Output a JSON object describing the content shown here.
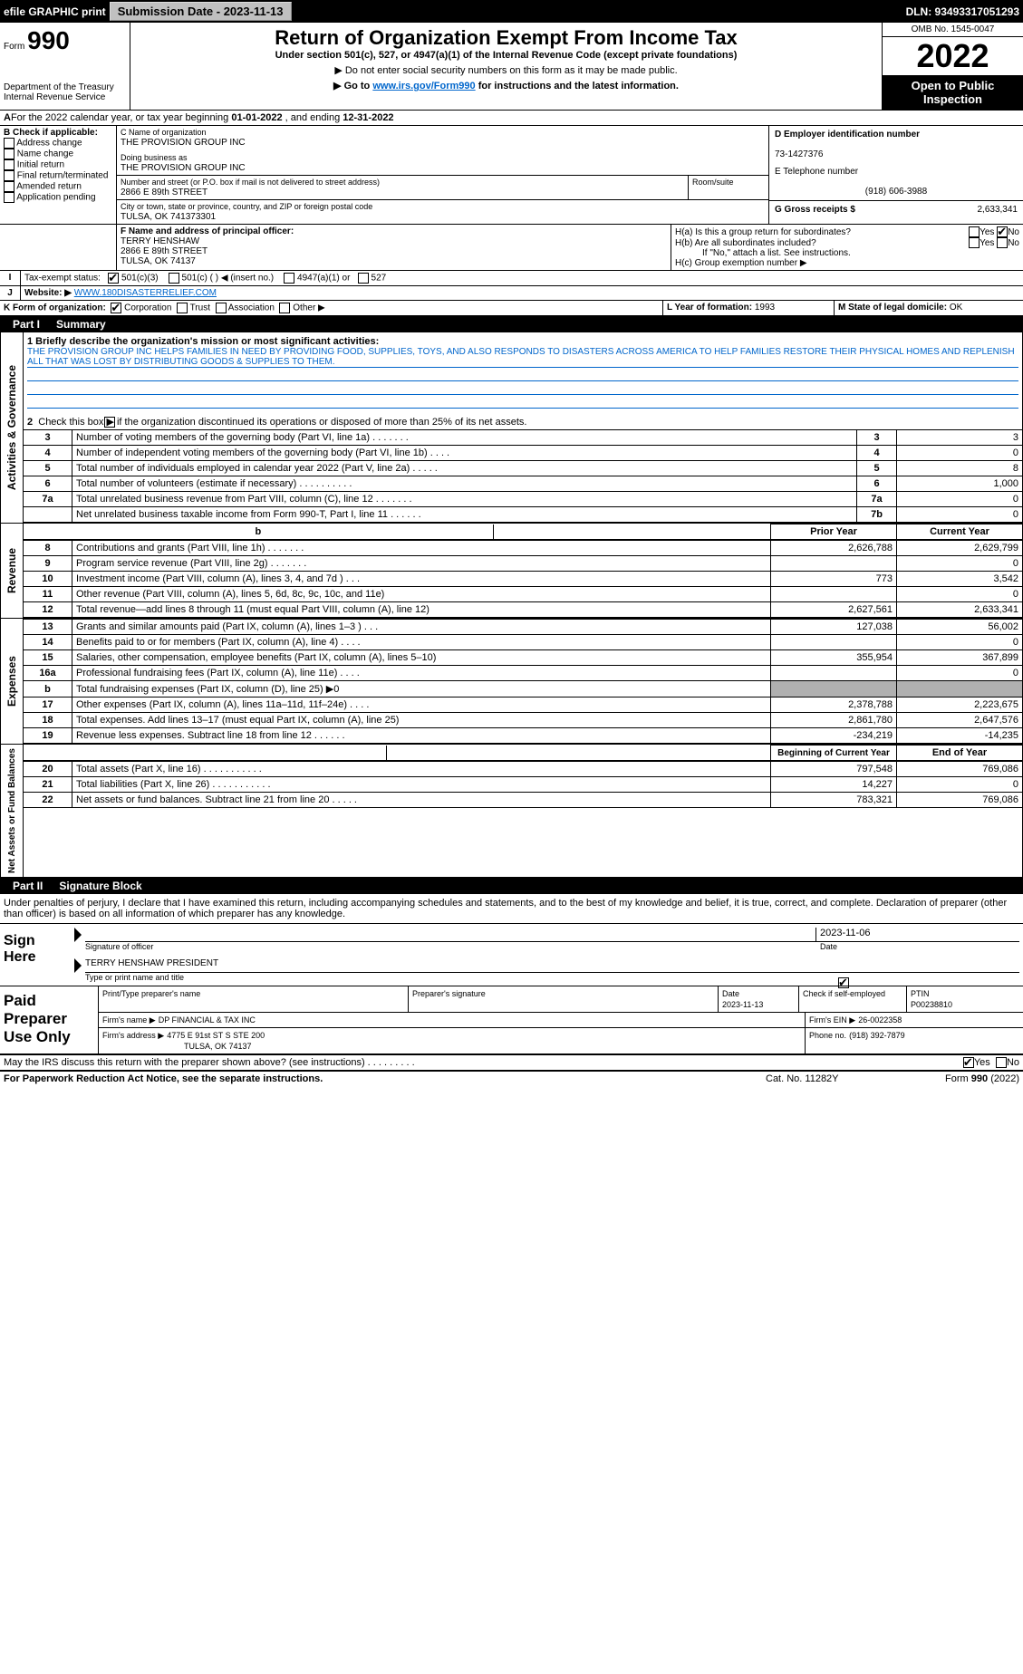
{
  "topbar": {
    "efile": "efile GRAPHIC print",
    "submission_btn": "Submission Date - 2023-11-13",
    "dln": "DLN: 93493317051293"
  },
  "header": {
    "form_word": "Form",
    "form_num": "990",
    "title": "Return of Organization Exempt From Income Tax",
    "subtitle": "Under section 501(c), 527, or 4947(a)(1) of the Internal Revenue Code (except private foundations)",
    "warn": "▶ Do not enter social security numbers on this form as it may be made public.",
    "goto_pre": "▶ Go to ",
    "goto_link": "www.irs.gov/Form990",
    "goto_post": " for instructions and the latest information.",
    "dept": "Department of the Treasury",
    "irs": "Internal Revenue Service",
    "omb": "OMB No. 1545-0047",
    "year": "2022",
    "open": "Open to Public Inspection"
  },
  "line_a": {
    "text_pre": "For the 2022 calendar year, or tax year beginning ",
    "begin": "01-01-2022",
    "mid": " , and ending ",
    "end": "12-31-2022"
  },
  "box_b": {
    "label": "B Check if applicable:",
    "items": [
      "Address change",
      "Name change",
      "Initial return",
      "Final return/terminated",
      "Amended return",
      "Application pending"
    ]
  },
  "box_c": {
    "c_label": "C Name of organization",
    "org": "THE PROVISION GROUP INC",
    "dba_label": "Doing business as",
    "dba": "THE PROVISION GROUP INC",
    "street_label": "Number and street (or P.O. box if mail is not delivered to street address)",
    "street": "2866 E 89th STREET",
    "room_label": "Room/suite",
    "city_label": "City or town, state or province, country, and ZIP or foreign postal code",
    "city": "TULSA, OK  741373301"
  },
  "box_d": {
    "label": "D Employer identification number",
    "val": "73-1427376"
  },
  "box_e": {
    "label": "E Telephone number",
    "val": "(918) 606-3988"
  },
  "box_g": {
    "label": "G Gross receipts $",
    "val": "2,633,341"
  },
  "box_f": {
    "label": "F Name and address of principal officer:",
    "name": "TERRY HENSHAW",
    "street": "2866 E 89th STREET",
    "city": "TULSA, OK  74137"
  },
  "box_h": {
    "a": "H(a)  Is this a group return for subordinates?",
    "b": "H(b)  Are all subordinates included?",
    "b2": "If \"No,\" attach a list. See instructions.",
    "c": "H(c)  Group exemption number ▶",
    "yes": "Yes",
    "no": "No"
  },
  "box_i": {
    "label": "Tax-exempt status:",
    "opts": [
      "501(c)(3)",
      "501(c) (   ) ◀ (insert no.)",
      "4947(a)(1) or",
      "527"
    ]
  },
  "box_j": {
    "label": "Website: ▶",
    "val": "WWW.180DISASTERRELIEF.COM"
  },
  "box_k": {
    "label": "K Form of organization:",
    "opts": [
      "Corporation",
      "Trust",
      "Association",
      "Other ▶"
    ]
  },
  "box_l": {
    "label": "L Year of formation:",
    "val": "1993"
  },
  "box_m": {
    "label": "M State of legal domicile:",
    "val": "OK"
  },
  "part1": {
    "hdr": "Part I",
    "title": "Summary"
  },
  "mission": {
    "label": "1  Briefly describe the organization's mission or most significant activities:",
    "text": "THE PROVISION GROUP INC HELPS FAMILIES IN NEED BY PROVIDING FOOD, SUPPLIES, TOYS, AND ALSO RESPONDS TO DISASTERS ACROSS AMERICA TO HELP FAMILIES RESTORE THEIR PHYSICAL HOMES AND REPLENISH ALL THAT WAS LOST BY DISTRIBUTING GOODS & SUPPLIES TO THEM."
  },
  "gov": {
    "section": "Activities & Governance",
    "line2": "Check this box ▶      if the organization discontinued its operations or disposed of more than 25% of its net assets.",
    "rows": [
      {
        "n": "3",
        "t": "Number of voting members of the governing body (Part VI, line 1a)  .    .    .    .    .    .    .",
        "b": "3",
        "v": "3"
      },
      {
        "n": "4",
        "t": "Number of independent voting members of the governing body (Part VI, line 1b)   .    .    .    .",
        "b": "4",
        "v": "0"
      },
      {
        "n": "5",
        "t": "Total number of individuals employed in calendar year 2022 (Part V, line 2a)   .    .    .    .    .",
        "b": "5",
        "v": "8"
      },
      {
        "n": "6",
        "t": "Total number of volunteers (estimate if necessary)    .    .    .    .    .    .    .    .    .    .",
        "b": "6",
        "v": "1,000"
      },
      {
        "n": "7a",
        "t": "Total unrelated business revenue from Part VIII, column (C), line 12   .    .    .    .    .    .    .",
        "b": "7a",
        "v": "0"
      },
      {
        "n": "",
        "t": "Net unrelated business taxable income from Form 990-T, Part I, line 11   .    .    .    .    .    .",
        "b": "7b",
        "v": "0"
      }
    ]
  },
  "rev": {
    "section": "Revenue",
    "hdr_prior": "Prior Year",
    "hdr_curr": "Current Year",
    "rows": [
      {
        "n": "8",
        "t": "Contributions and grants (Part VIII, line 1h)    .    .    .    .    .    .    .",
        "p": "2,626,788",
        "c": "2,629,799"
      },
      {
        "n": "9",
        "t": "Program service revenue (Part VIII, line 2g)    .    .    .    .    .    .    .",
        "p": "",
        "c": "0"
      },
      {
        "n": "10",
        "t": "Investment income (Part VIII, column (A), lines 3, 4, and 7d )    .    .    .",
        "p": "773",
        "c": "3,542"
      },
      {
        "n": "11",
        "t": "Other revenue (Part VIII, column (A), lines 5, 6d, 8c, 9c, 10c, and 11e)",
        "p": "",
        "c": "0"
      },
      {
        "n": "12",
        "t": "Total revenue—add lines 8 through 11 (must equal Part VIII, column (A), line 12)",
        "p": "2,627,561",
        "c": "2,633,341"
      }
    ]
  },
  "exp": {
    "section": "Expenses",
    "rows": [
      {
        "n": "13",
        "t": "Grants and similar amounts paid (Part IX, column (A), lines 1–3 )   .    .    .",
        "p": "127,038",
        "c": "56,002"
      },
      {
        "n": "14",
        "t": "Benefits paid to or for members (Part IX, column (A), line 4)    .    .    .    .",
        "p": "",
        "c": "0"
      },
      {
        "n": "15",
        "t": "Salaries, other compensation, employee benefits (Part IX, column (A), lines 5–10)",
        "p": "355,954",
        "c": "367,899"
      },
      {
        "n": "16a",
        "t": "Professional fundraising fees (Part IX, column (A), line 11e)    .    .    .    .",
        "p": "",
        "c": "0"
      },
      {
        "n": "b",
        "t": "Total fundraising expenses (Part IX, column (D), line 25) ▶0",
        "p": "GRAY",
        "c": "GRAY"
      },
      {
        "n": "17",
        "t": "Other expenses (Part IX, column (A), lines 11a–11d, 11f–24e)    .    .    .    .",
        "p": "2,378,788",
        "c": "2,223,675"
      },
      {
        "n": "18",
        "t": "Total expenses. Add lines 13–17 (must equal Part IX, column (A), line 25)",
        "p": "2,861,780",
        "c": "2,647,576"
      },
      {
        "n": "19",
        "t": "Revenue less expenses. Subtract line 18 from line 12   .    .    .    .    .    .",
        "p": "-234,219",
        "c": "-14,235"
      }
    ]
  },
  "net": {
    "section": "Net Assets or Fund Balances",
    "hdr_begin": "Beginning of Current Year",
    "hdr_end": "End of Year",
    "rows": [
      {
        "n": "20",
        "t": "Total assets (Part X, line 16)   .    .    .    .    .    .    .    .    .    .    .",
        "p": "797,548",
        "c": "769,086"
      },
      {
        "n": "21",
        "t": "Total liabilities (Part X, line 26)   .    .    .    .    .    .    .    .    .    .    .",
        "p": "14,227",
        "c": "0"
      },
      {
        "n": "22",
        "t": "Net assets or fund balances. Subtract line 21 from line 20    .    .    .    .    .",
        "p": "783,321",
        "c": "769,086"
      }
    ]
  },
  "part2": {
    "hdr": "Part II",
    "title": "Signature Block"
  },
  "penalty": "Under penalties of perjury, I declare that I have examined this return, including accompanying schedules and statements, and to the best of my knowledge and belief, it is true, correct, and complete. Declaration of preparer (other than officer) is based on all information of which preparer has any knowledge.",
  "sign": {
    "here": "Sign Here",
    "sig_label": "Signature of officer",
    "date_label": "Date",
    "date_val": "2023-11-06",
    "name": "TERRY HENSHAW  PRESIDENT",
    "name_label": "Type or print name and title"
  },
  "paid": {
    "title": "Paid Preparer Use Only",
    "h1": "Print/Type preparer's name",
    "h2": "Preparer's signature",
    "h3": "Date",
    "h3v": "2023-11-13",
    "h4": "Check        if self-employed",
    "h5": "PTIN",
    "h5v": "P00238810",
    "firm_name_l": "Firm's name    ▶",
    "firm_name": "DP FINANCIAL & TAX INC",
    "firm_ein_l": "Firm's EIN ▶",
    "firm_ein": "26-0022358",
    "firm_addr_l": "Firm's address ▶",
    "firm_addr1": "4775 E 91st ST S STE 200",
    "firm_addr2": "TULSA, OK  74137",
    "phone_l": "Phone no.",
    "phone": "(918) 392-7879"
  },
  "discuss": {
    "text": "May the IRS discuss this return with the preparer shown above? (see instructions)    .    .    .    .    .    .    .    .    .",
    "yes": "Yes",
    "no": "No"
  },
  "footer": {
    "left": "For Paperwork Reduction Act Notice, see the separate instructions.",
    "mid": "Cat. No. 11282Y",
    "right": "Form 990 (2022)"
  }
}
